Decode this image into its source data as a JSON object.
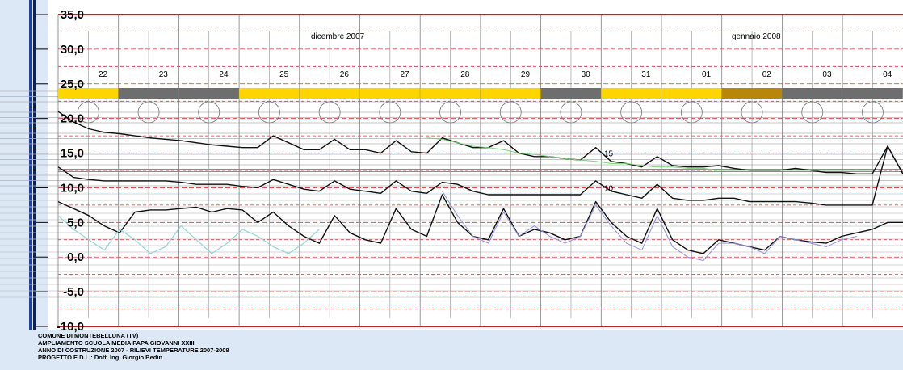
{
  "chart_data": {
    "type": "line",
    "ylim": [
      -10,
      35
    ],
    "y_ticks": [
      "35,0",
      "30,0",
      "25,0",
      "20,0",
      "15,0",
      "10,0",
      "5,0",
      "0,0",
      "-5,0",
      "-10,0"
    ],
    "y_tick_values": [
      35,
      30,
      25,
      20,
      15,
      10,
      5,
      0,
      -5,
      -10
    ],
    "months": [
      "dicembre 2007",
      "gennaio 2008"
    ],
    "days": [
      "22",
      "23",
      "24",
      "25",
      "26",
      "27",
      "28",
      "29",
      "30",
      "31",
      "01",
      "02",
      "03",
      "04"
    ],
    "day_status": [
      "yellow",
      "gray",
      "gray",
      "yellow",
      "yellow",
      "yellow",
      "yellow",
      "yellow",
      "gray",
      "yellow",
      "yellow",
      "brown",
      "gray",
      "gray"
    ],
    "reference_labels": [
      "15",
      "10"
    ],
    "reference_values": [
      15,
      10
    ],
    "colors": {
      "yellow": "#ffd500",
      "gray": "#6e6e6e",
      "brown": "#b8860b",
      "dashed_red": "#e03030",
      "ref_green": "#7ccf7c",
      "outdoor_model": "#8fd6d6",
      "blue_model": "#9090e0"
    },
    "series": [
      {
        "values": [
          21,
          19.5,
          18.5,
          18,
          17.8,
          17.5,
          17.2,
          17,
          16.8,
          16.5,
          16.2,
          16,
          15.8,
          15.8,
          17.5,
          16.5,
          15.5,
          15.5,
          17,
          15.5,
          15.5,
          15,
          16.8,
          15.2,
          15,
          17.2,
          16.5,
          15.8,
          15.8,
          16.8,
          15,
          14.5,
          14.5,
          14.2,
          14,
          15.8,
          13.8,
          13.5,
          13,
          14.5,
          13.2,
          13,
          13,
          13.2,
          12.8,
          12.5,
          12.5,
          12.5,
          12.8,
          12.5,
          12.2,
          12.2,
          12,
          12,
          16,
          12
        ]
      },
      {
        "values": [
          13,
          11.5,
          11.2,
          11,
          11,
          11,
          11,
          11,
          10.8,
          10.5,
          10.5,
          10.5,
          10.2,
          10,
          11.2,
          10.5,
          9.8,
          9.5,
          11,
          9.8,
          9.5,
          9.2,
          11,
          9.5,
          9.2,
          10.8,
          10.5,
          9.5,
          9,
          9,
          9,
          9,
          9,
          9,
          9,
          11,
          9.5,
          9,
          8.5,
          10.5,
          8.5,
          8.2,
          8.2,
          8.5,
          8.5,
          8,
          8,
          8,
          8,
          7.8,
          7.5,
          7.5,
          7.5,
          7.5,
          16,
          12
        ]
      },
      {
        "values": [
          8,
          7,
          6,
          4.5,
          3.5,
          6.5,
          6.8,
          6.8,
          7,
          7.2,
          6.5,
          7,
          6.8,
          5,
          6.5,
          4.5,
          3,
          2,
          6,
          3.5,
          2.5,
          2,
          7,
          4,
          3,
          9,
          5,
          3,
          2.5,
          7,
          3,
          4,
          3.5,
          2.5,
          3,
          8,
          5,
          3,
          2,
          7,
          2.5,
          1,
          0.5,
          2.5,
          2,
          1.5,
          1,
          3,
          2.5,
          2.2,
          2,
          3,
          3.5,
          4,
          5,
          5
        ]
      },
      {
        "values": [
          null,
          null,
          null,
          null,
          null,
          null,
          null,
          null,
          null,
          null,
          null,
          null,
          null,
          null,
          null,
          null,
          null,
          null,
          null,
          null,
          null,
          null,
          null,
          null,
          17.2,
          17,
          16.5,
          16,
          15.8,
          15.5,
          15,
          14.8,
          14.5,
          14.2,
          14,
          13.8,
          13.5,
          13.5,
          13.2,
          13,
          13,
          12.8,
          12.8,
          12.5,
          12.5,
          12.5,
          12.5,
          12.5,
          12.5,
          12.5,
          12.5,
          12.5,
          12.5,
          12.5,
          null,
          null
        ]
      },
      {
        "values": [
          6,
          4,
          2.5,
          1,
          4,
          2.5,
          0.5,
          1.5,
          4.5,
          2.5,
          0.5,
          2,
          4,
          3,
          1.5,
          0.5,
          2,
          4,
          null,
          null,
          null,
          null,
          null,
          null,
          null,
          null,
          null,
          null,
          null,
          null,
          null,
          null,
          null,
          null,
          null,
          null,
          null,
          null,
          null,
          null,
          null,
          null,
          null,
          null,
          null,
          null,
          null,
          null,
          null,
          null,
          null,
          null,
          null,
          null,
          null,
          null
        ]
      },
      {
        "values": [
          null,
          null,
          null,
          null,
          null,
          null,
          null,
          null,
          null,
          null,
          null,
          null,
          null,
          null,
          null,
          null,
          null,
          null,
          null,
          null,
          null,
          null,
          null,
          null,
          null,
          9.5,
          6,
          3,
          2,
          6.5,
          3,
          4.5,
          3,
          2,
          3,
          7.5,
          4.5,
          2,
          1,
          6,
          1.5,
          0,
          -0.5,
          2,
          2,
          1.5,
          0.5,
          3,
          2.5,
          2,
          1.5,
          2.5,
          3,
          null,
          null,
          null
        ]
      }
    ]
  },
  "footer": {
    "line1": "COMUNE DI MONTEBELLUNA (TV)",
    "line2": "AMPLIAMENTO SCUOLA MEDIA PAPA GIOVANNI XXIII",
    "line3": "ANNO DI COSTRUZIONE 2007 - RILIEVI TEMPERATURE 2007-2008",
    "line4": "PROGETTO E D.L.: Dott. Ing. Giorgio Bedin"
  }
}
